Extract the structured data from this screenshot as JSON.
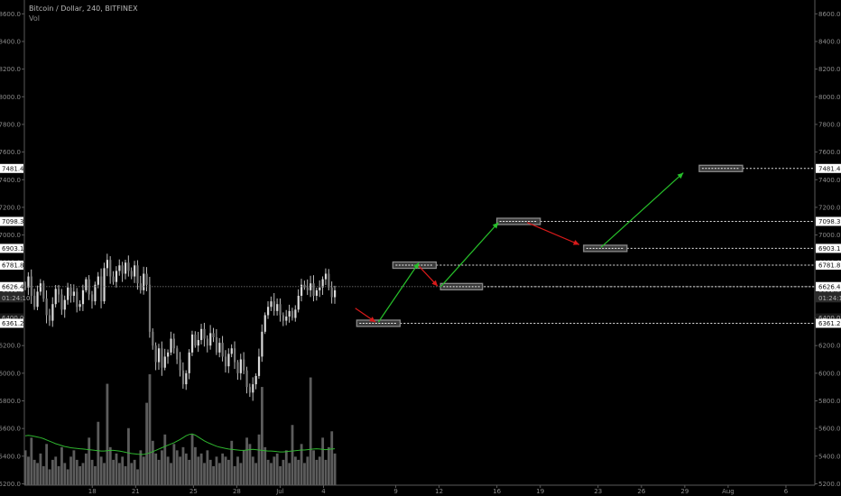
{
  "header": {
    "symbol_line": "Bitcoin / Dollar, 240, BITFINEX",
    "volume_label": "Vol"
  },
  "chart_data": {
    "type": "candlestick",
    "symbol": "Bitcoin / Dollar",
    "interval": "240",
    "exchange": "BITFINEX",
    "y_axis": {
      "ticks": [
        5200,
        5400,
        5600,
        5800,
        6000,
        6200,
        6400,
        6600,
        6800,
        7000,
        7200,
        7400,
        7600,
        7800,
        8000,
        8200,
        8400,
        8600
      ],
      "tick_labels": [
        "5200.0",
        "5400.0",
        "5600.0",
        "5800.0",
        "6000.0",
        "6200.0",
        "6400.0",
        "6600.0",
        "6800.0",
        "7000.0",
        "7200.0",
        "7400.0",
        "7600.0",
        "7800.0",
        "8000.0",
        "8200.0",
        "8400.0",
        "8600.0"
      ],
      "range": [
        5190,
        8700
      ]
    },
    "x_axis": {
      "ticks": [
        {
          "day": 18,
          "label": "18"
        },
        {
          "day": 21,
          "label": "21"
        },
        {
          "day": 25,
          "label": "25"
        },
        {
          "day": 28,
          "label": "28"
        },
        {
          "day": 31,
          "label": "Jul"
        },
        {
          "day": 34,
          "label": "4"
        },
        {
          "day": 39,
          "label": "9"
        },
        {
          "day": 42,
          "label": "12"
        },
        {
          "day": 46,
          "label": "16"
        },
        {
          "day": 49,
          "label": "19"
        },
        {
          "day": 53,
          "label": "23"
        },
        {
          "day": 56,
          "label": "26"
        },
        {
          "day": 59,
          "label": "29"
        },
        {
          "day": 62,
          "label": "Aug"
        },
        {
          "day": 66,
          "label": "6"
        }
      ],
      "range": [
        13.3,
        68
      ]
    },
    "candle_closes": [
      6620,
      6700,
      6560,
      6480,
      6590,
      6650,
      6540,
      6420,
      6380,
      6500,
      6610,
      6570,
      6460,
      6530,
      6620,
      6560,
      6590,
      6480,
      6500,
      6600,
      6680,
      6570,
      6520,
      6640,
      6700,
      6520,
      6760,
      6820,
      6700,
      6660,
      6740,
      6780,
      6720,
      6800,
      6740,
      6700,
      6780,
      6650,
      6600,
      6720,
      6640,
      6300,
      6200,
      6080,
      6180,
      6040,
      6120,
      6150,
      6250,
      6180,
      6100,
      6020,
      5920,
      6000,
      6150,
      6280,
      6200,
      6240,
      6320,
      6250,
      6200,
      6290,
      6260,
      6150,
      6220,
      6120,
      6050,
      6140,
      6180,
      6080,
      6000,
      6100,
      6020,
      5900,
      5860,
      5920,
      5980,
      6120,
      6300,
      6420,
      6480,
      6520,
      6450,
      6500,
      6420,
      6380,
      6410,
      6450,
      6400,
      6460,
      6560,
      6640,
      6620,
      6600,
      6650,
      6560,
      6600,
      6620,
      6680,
      6720,
      6620,
      6550,
      6600
    ],
    "volume": {
      "axis_max": 3700,
      "bars": [
        1100,
        900,
        1500,
        800,
        700,
        1000,
        600,
        1300,
        500,
        800,
        900,
        600,
        1200,
        700,
        500,
        900,
        1100,
        800,
        600,
        700,
        1000,
        1500,
        800,
        600,
        2000,
        900,
        700,
        3200,
        1200,
        800,
        1000,
        700,
        900,
        600,
        1800,
        700,
        800,
        500,
        1100,
        900,
        2600,
        3500,
        1400,
        1000,
        800,
        1100,
        1600,
        900,
        700,
        1300,
        1100,
        900,
        1200,
        1000,
        800,
        1600,
        1200,
        900,
        1000,
        700,
        1100,
        800,
        600,
        900,
        700,
        1000,
        900,
        800,
        1400,
        600,
        900,
        700,
        1100,
        1500,
        1300,
        900,
        700,
        1600,
        3100,
        1200,
        800,
        700,
        900,
        1000,
        600,
        800,
        1100,
        700,
        1900,
        900,
        800,
        1300,
        700,
        900,
        3400,
        1100,
        800,
        900,
        1500,
        800,
        1200,
        1700,
        1000
      ],
      "moving_average": [
        1560,
        1570,
        1560,
        1540,
        1520,
        1500,
        1470,
        1430,
        1390,
        1350,
        1310,
        1280,
        1250,
        1220,
        1200,
        1180,
        1170,
        1160,
        1150,
        1140,
        1130,
        1120,
        1110,
        1100,
        1090,
        1080,
        1080,
        1090,
        1100,
        1100,
        1090,
        1080,
        1060,
        1040,
        1020,
        1000,
        990,
        980,
        970,
        970,
        990,
        1020,
        1060,
        1100,
        1140,
        1180,
        1220,
        1260,
        1300,
        1340,
        1390,
        1440,
        1500,
        1560,
        1600,
        1620,
        1580,
        1520,
        1460,
        1400,
        1350,
        1310,
        1270,
        1230,
        1200,
        1180,
        1160,
        1140,
        1130,
        1120,
        1110,
        1100,
        1100,
        1110,
        1120,
        1130,
        1120,
        1110,
        1100,
        1090,
        1080,
        1080,
        1070,
        1060,
        1050,
        1050,
        1060,
        1070,
        1080,
        1090,
        1100,
        1110,
        1110,
        1120,
        1130,
        1140,
        1150,
        1140,
        1130,
        1120,
        1130,
        1140,
        1150
      ]
    },
    "current_price": {
      "value": 6626.4,
      "label": "6626.4"
    },
    "overlapping_price_labels": [
      {
        "value": 6602.5,
        "label": "6602.5"
      },
      {
        "value": 6545,
        "label": "01:24:10"
      },
      {
        "value": 6400,
        "label": "6400.0"
      }
    ],
    "levels": [
      {
        "price": 7481.4,
        "label": "7481.4",
        "box_from_day": 60.0,
        "box_to_day": 63.0,
        "line_from_day": 60.0
      },
      {
        "price": 7098.3,
        "label": "7098.3",
        "box_from_day": 46.0,
        "box_to_day": 49.0,
        "line_from_day": 46.0
      },
      {
        "price": 6903.1,
        "label": "6903.1",
        "box_from_day": 52.0,
        "box_to_day": 55.0,
        "line_from_day": 52.0
      },
      {
        "price": 6781.8,
        "label": "6781.8",
        "box_from_day": 38.8,
        "box_to_day": 41.8,
        "line_from_day": 38.8
      },
      {
        "price": 6626.4,
        "label": "6626.4",
        "box_from_day": 42.1,
        "box_to_day": 45.0,
        "line_from_day": 42.1
      },
      {
        "price": 6361.2,
        "label": "6361.2",
        "box_from_day": 36.3,
        "box_to_day": 39.3,
        "line_from_day": 36.3
      }
    ],
    "arrows": [
      {
        "direction": "down",
        "color": "#d91a1a",
        "from": {
          "day": 36.2,
          "price": 6470
        },
        "to": {
          "day": 37.6,
          "price": 6370
        }
      },
      {
        "direction": "up",
        "color": "#27c02a",
        "from": {
          "day": 37.8,
          "price": 6370
        },
        "to": {
          "day": 40.6,
          "price": 6800
        }
      },
      {
        "direction": "down",
        "color": "#d91a1a",
        "from": {
          "day": 40.6,
          "price": 6775
        },
        "to": {
          "day": 41.9,
          "price": 6630
        }
      },
      {
        "direction": "up",
        "color": "#27c02a",
        "from": {
          "day": 42.1,
          "price": 6625
        },
        "to": {
          "day": 46.1,
          "price": 7090
        }
      },
      {
        "direction": "down",
        "color": "#d91a1a",
        "from": {
          "day": 48.1,
          "price": 7090
        },
        "to": {
          "day": 51.7,
          "price": 6930
        }
      },
      {
        "direction": "up",
        "color": "#27c02a",
        "from": {
          "day": 53.2,
          "price": 6910
        },
        "to": {
          "day": 58.9,
          "price": 7450
        }
      }
    ]
  }
}
